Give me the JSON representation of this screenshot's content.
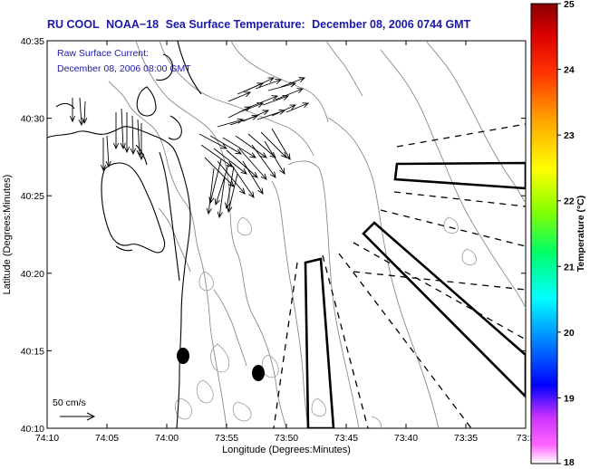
{
  "title": {
    "org": "RU COOL",
    "satellite": "NOAA−18",
    "product": "Sea Surface Temperature:",
    "datetime": "December 08, 2006 0744 GMT"
  },
  "legend": {
    "current_label": "Raw Surface Current:",
    "current_datetime": "December 08, 2006 08:00 GMT",
    "scale_label": "50 cm/s"
  },
  "axes": {
    "xlabel": "Longitude (Degrees:Minutes)",
    "ylabel": "Latitude (Degrees:Minutes)",
    "xticks": [
      "74:10",
      "74:05",
      "74:00",
      "73:55",
      "73:50",
      "73:45",
      "73:40",
      "73:35",
      "73:3"
    ],
    "yticks": [
      "40:35",
      "40:30",
      "40:25",
      "40:20",
      "40:15",
      "40:10"
    ]
  },
  "colorbar": {
    "label": "Temperature (°C)",
    "ticks": [
      "25",
      "24",
      "23",
      "22",
      "21",
      "20",
      "19",
      "18"
    ],
    "min": 18,
    "max": 25,
    "colors": [
      "#ff66ff",
      "#cc33ff",
      "#0000ff",
      "#00aaff",
      "#00ffff",
      "#00ff66",
      "#99ff00",
      "#ffff00",
      "#ffaa00",
      "#ff4400",
      "#ff0000",
      "#cc0000",
      "#880000"
    ]
  }
}
